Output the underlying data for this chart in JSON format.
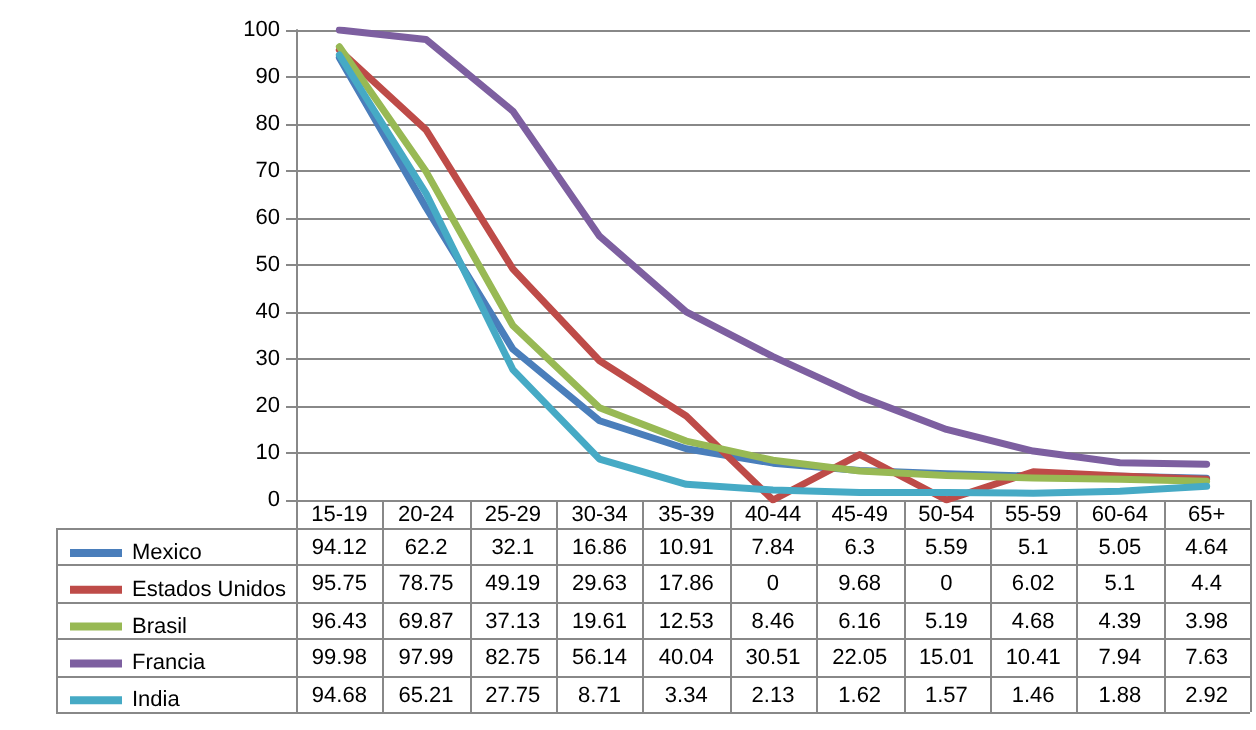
{
  "chart_data": {
    "type": "line",
    "categories": [
      "15-19",
      "20-24",
      "25-29",
      "30-34",
      "35-39",
      "40-44",
      "45-49",
      "50-54",
      "55-59",
      "60-64",
      "65+"
    ],
    "series": [
      {
        "name": "Mexico",
        "color": "#4a7ebb",
        "values": [
          94.12,
          62.2,
          32.1,
          16.86,
          10.91,
          7.84,
          6.3,
          5.59,
          5.1,
          5.05,
          4.64
        ]
      },
      {
        "name": "Estados Unidos",
        "color": "#be4b48",
        "values": [
          95.75,
          78.75,
          49.19,
          29.63,
          17.86,
          0,
          9.68,
          0,
          6.02,
          5.1,
          4.4
        ]
      },
      {
        "name": "Brasil",
        "color": "#98b954",
        "values": [
          96.43,
          69.87,
          37.13,
          19.61,
          12.53,
          8.46,
          6.16,
          5.19,
          4.68,
          4.39,
          3.98
        ]
      },
      {
        "name": "Francia",
        "color": "#7d5fa0",
        "values": [
          99.98,
          97.99,
          82.75,
          56.14,
          40.04,
          30.51,
          22.05,
          15.01,
          10.41,
          7.94,
          7.63
        ]
      },
      {
        "name": "India",
        "color": "#46aac5",
        "values": [
          94.68,
          65.21,
          27.75,
          8.71,
          3.34,
          2.13,
          1.62,
          1.57,
          1.46,
          1.88,
          2.92
        ]
      }
    ],
    "ylim": [
      0,
      100
    ],
    "yticks": [
      0,
      10,
      20,
      30,
      40,
      50,
      60,
      70,
      80,
      90,
      100
    ],
    "grid": "y",
    "legend": "bottom",
    "data_labels": true,
    "marker": "none",
    "line_style": "solid"
  }
}
